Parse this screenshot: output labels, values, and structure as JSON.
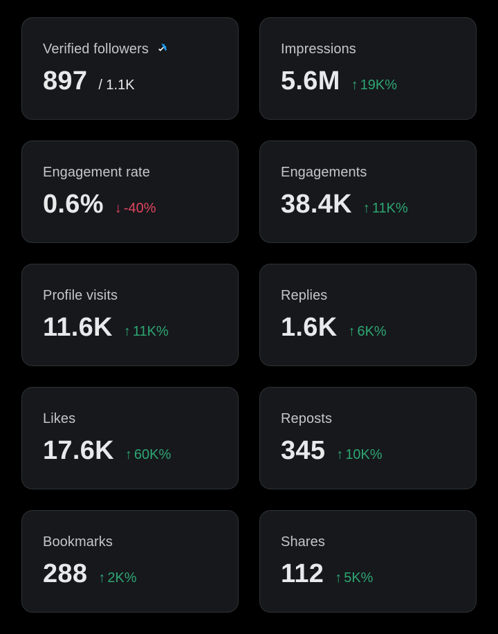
{
  "colors": {
    "background": "#000000",
    "card": "#16181c",
    "positive": "#2ea672",
    "negative": "#e0455e",
    "verified": "#1d9bf0"
  },
  "cards": [
    {
      "label": "Verified followers",
      "value": "897",
      "sub": "/ 1.1K",
      "icon": "verified-badge-icon"
    },
    {
      "label": "Impressions",
      "value": "5.6M",
      "change": "19K%",
      "direction": "up",
      "arrow": "↑"
    },
    {
      "label": "Engagement rate",
      "value": "0.6%",
      "change": "-40%",
      "direction": "down",
      "arrow": "↓"
    },
    {
      "label": "Engagements",
      "value": "38.4K",
      "change": "11K%",
      "direction": "up",
      "arrow": "↑"
    },
    {
      "label": "Profile visits",
      "value": "11.6K",
      "change": "11K%",
      "direction": "up",
      "arrow": "↑"
    },
    {
      "label": "Replies",
      "value": "1.6K",
      "change": "6K%",
      "direction": "up",
      "arrow": "↑"
    },
    {
      "label": "Likes",
      "value": "17.6K",
      "change": "60K%",
      "direction": "up",
      "arrow": "↑"
    },
    {
      "label": "Reposts",
      "value": "345",
      "change": "10K%",
      "direction": "up",
      "arrow": "↑"
    },
    {
      "label": "Bookmarks",
      "value": "288",
      "change": "2K%",
      "direction": "up",
      "arrow": "↑"
    },
    {
      "label": "Shares",
      "value": "112",
      "change": "5K%",
      "direction": "up",
      "arrow": "↑"
    }
  ]
}
